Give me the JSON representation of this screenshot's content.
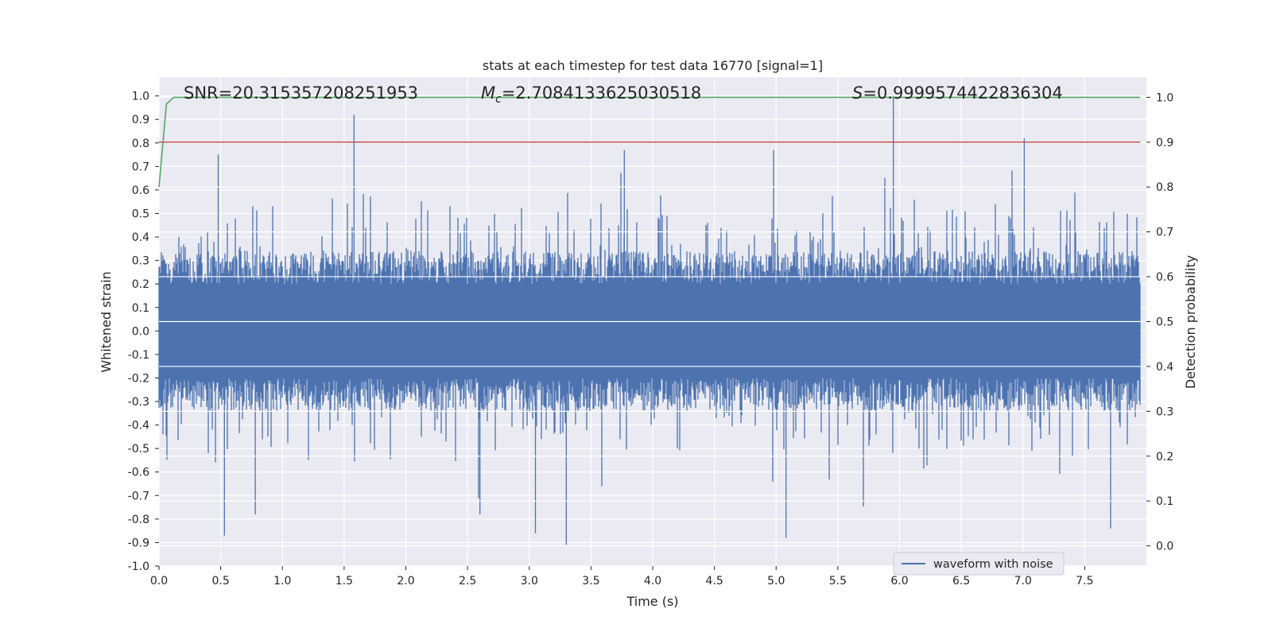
{
  "chart_data": {
    "type": "line",
    "title": "stats at each timestep for test data 16770 [signal=1]",
    "xlabel": "Time (s)",
    "ylabel": "Whitened strain",
    "y2label": "Detection probability",
    "xlim": [
      0.0,
      8.0
    ],
    "ylim": [
      -1.0,
      1.08
    ],
    "y2lim": [
      -0.045,
      1.045
    ],
    "grid": true,
    "legend_position": "bottom-right",
    "x_ticks": [
      "0.0",
      "0.5",
      "1.0",
      "1.5",
      "2.0",
      "2.5",
      "3.0",
      "3.5",
      "4.0",
      "4.5",
      "5.0",
      "5.5",
      "6.0",
      "6.5",
      "7.0",
      "7.5"
    ],
    "y_ticks": [
      "1.0",
      "0.9",
      "0.8",
      "0.7",
      "0.6",
      "0.5",
      "0.4",
      "0.3",
      "0.2",
      "0.1",
      "0.0",
      "-0.1",
      "-0.2",
      "-0.3",
      "-0.4",
      "-0.5",
      "-0.6",
      "-0.7",
      "-0.8",
      "-0.9",
      "-1.0"
    ],
    "y2_ticks": [
      "1.0",
      "0.9",
      "0.8",
      "0.7",
      "0.6",
      "0.5",
      "0.4",
      "0.3",
      "0.2",
      "0.1",
      "0.0"
    ],
    "annotations": {
      "snr": "SNR=20.315357208251953",
      "mc_symbol": "M",
      "mc_subscript": "c",
      "mc_value": "=2.7084133625030518",
      "s_symbol": "S",
      "s_value": "=0.9999574422836304"
    },
    "series": [
      {
        "name": "waveform with noise",
        "axis": "left",
        "color": "#4c72b0",
        "kind": "noisy strain, approx. amplitude envelope",
        "max_peak": {
          "x": 5.95,
          "y": 1.0
        },
        "min_trough": {
          "x": 3.3,
          "y": -0.91
        },
        "notable_peaks": [
          {
            "x": 1.58,
            "y": 0.92
          },
          {
            "x": 7.01,
            "y": 0.82
          },
          {
            "x": 0.48,
            "y": 0.75
          },
          {
            "x": 3.77,
            "y": 0.77
          },
          {
            "x": 4.98,
            "y": 0.77
          }
        ],
        "notable_troughs": [
          {
            "x": 0.53,
            "y": -0.87
          },
          {
            "x": 3.05,
            "y": -0.86
          },
          {
            "x": 5.08,
            "y": -0.88
          },
          {
            "x": 7.71,
            "y": -0.84
          },
          {
            "x": 0.78,
            "y": -0.78
          },
          {
            "x": 2.6,
            "y": -0.78
          }
        ]
      },
      {
        "name": "detection probability",
        "axis": "right",
        "color": "#55a868",
        "x": [
          0.0,
          0.06,
          0.12,
          0.2,
          7.95
        ],
        "y": [
          0.8,
          0.985,
          1.0,
          1.0,
          1.0
        ]
      },
      {
        "name": "threshold",
        "axis": "right",
        "color": "#c44e52",
        "x": [
          0.0,
          7.95
        ],
        "y": [
          0.9,
          0.9
        ]
      }
    ]
  },
  "legend": {
    "entries": [
      "waveform with noise"
    ]
  }
}
